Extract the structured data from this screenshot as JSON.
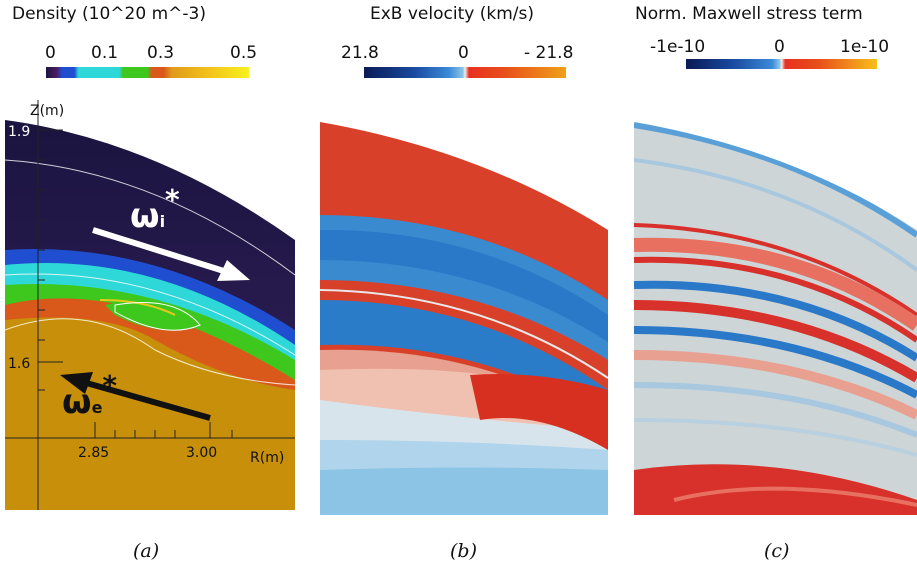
{
  "panels": [
    {
      "title": "Density (10^20 m^-3)",
      "colorbar_ticks": [
        "0",
        "0.1",
        "0.3",
        "0.5"
      ],
      "caption": "(a)",
      "axis": {
        "z_label": "Z(m)",
        "r_label": "R(m)",
        "z_ticks": [
          "1.9",
          "1.6"
        ],
        "r_ticks": [
          "2.85",
          "3.00"
        ]
      },
      "annotations": {
        "omega_i": "ω",
        "omega_i_sub": "i",
        "omega_e": "ω",
        "omega_e_sub": "e",
        "star": "*"
      },
      "colors": {
        "background_top": "#1a1440",
        "blue_band": "#1f4fd0",
        "cyan_band": "#2fd8d8",
        "green_band": "#3ec81e",
        "orange_band": "#d9591a",
        "gold_region": "#c8900a"
      }
    },
    {
      "title": "ExB velocity (km/s)",
      "colorbar_ticks": [
        "21.8",
        "0",
        "- 21.8"
      ],
      "caption": "(b)",
      "colors": {
        "red": "#d8402a",
        "blue": "#2a7cc8",
        "light_blue": "#8cc4e6"
      }
    },
    {
      "title": "Norm. Maxwell stress term",
      "colorbar_ticks": [
        "-1e-10",
        "0",
        "1e-10"
      ],
      "caption": "(c)",
      "colors": {
        "gray": "#cdd5d6",
        "red": "#d8302a",
        "blue": "#2a78c8"
      }
    }
  ]
}
